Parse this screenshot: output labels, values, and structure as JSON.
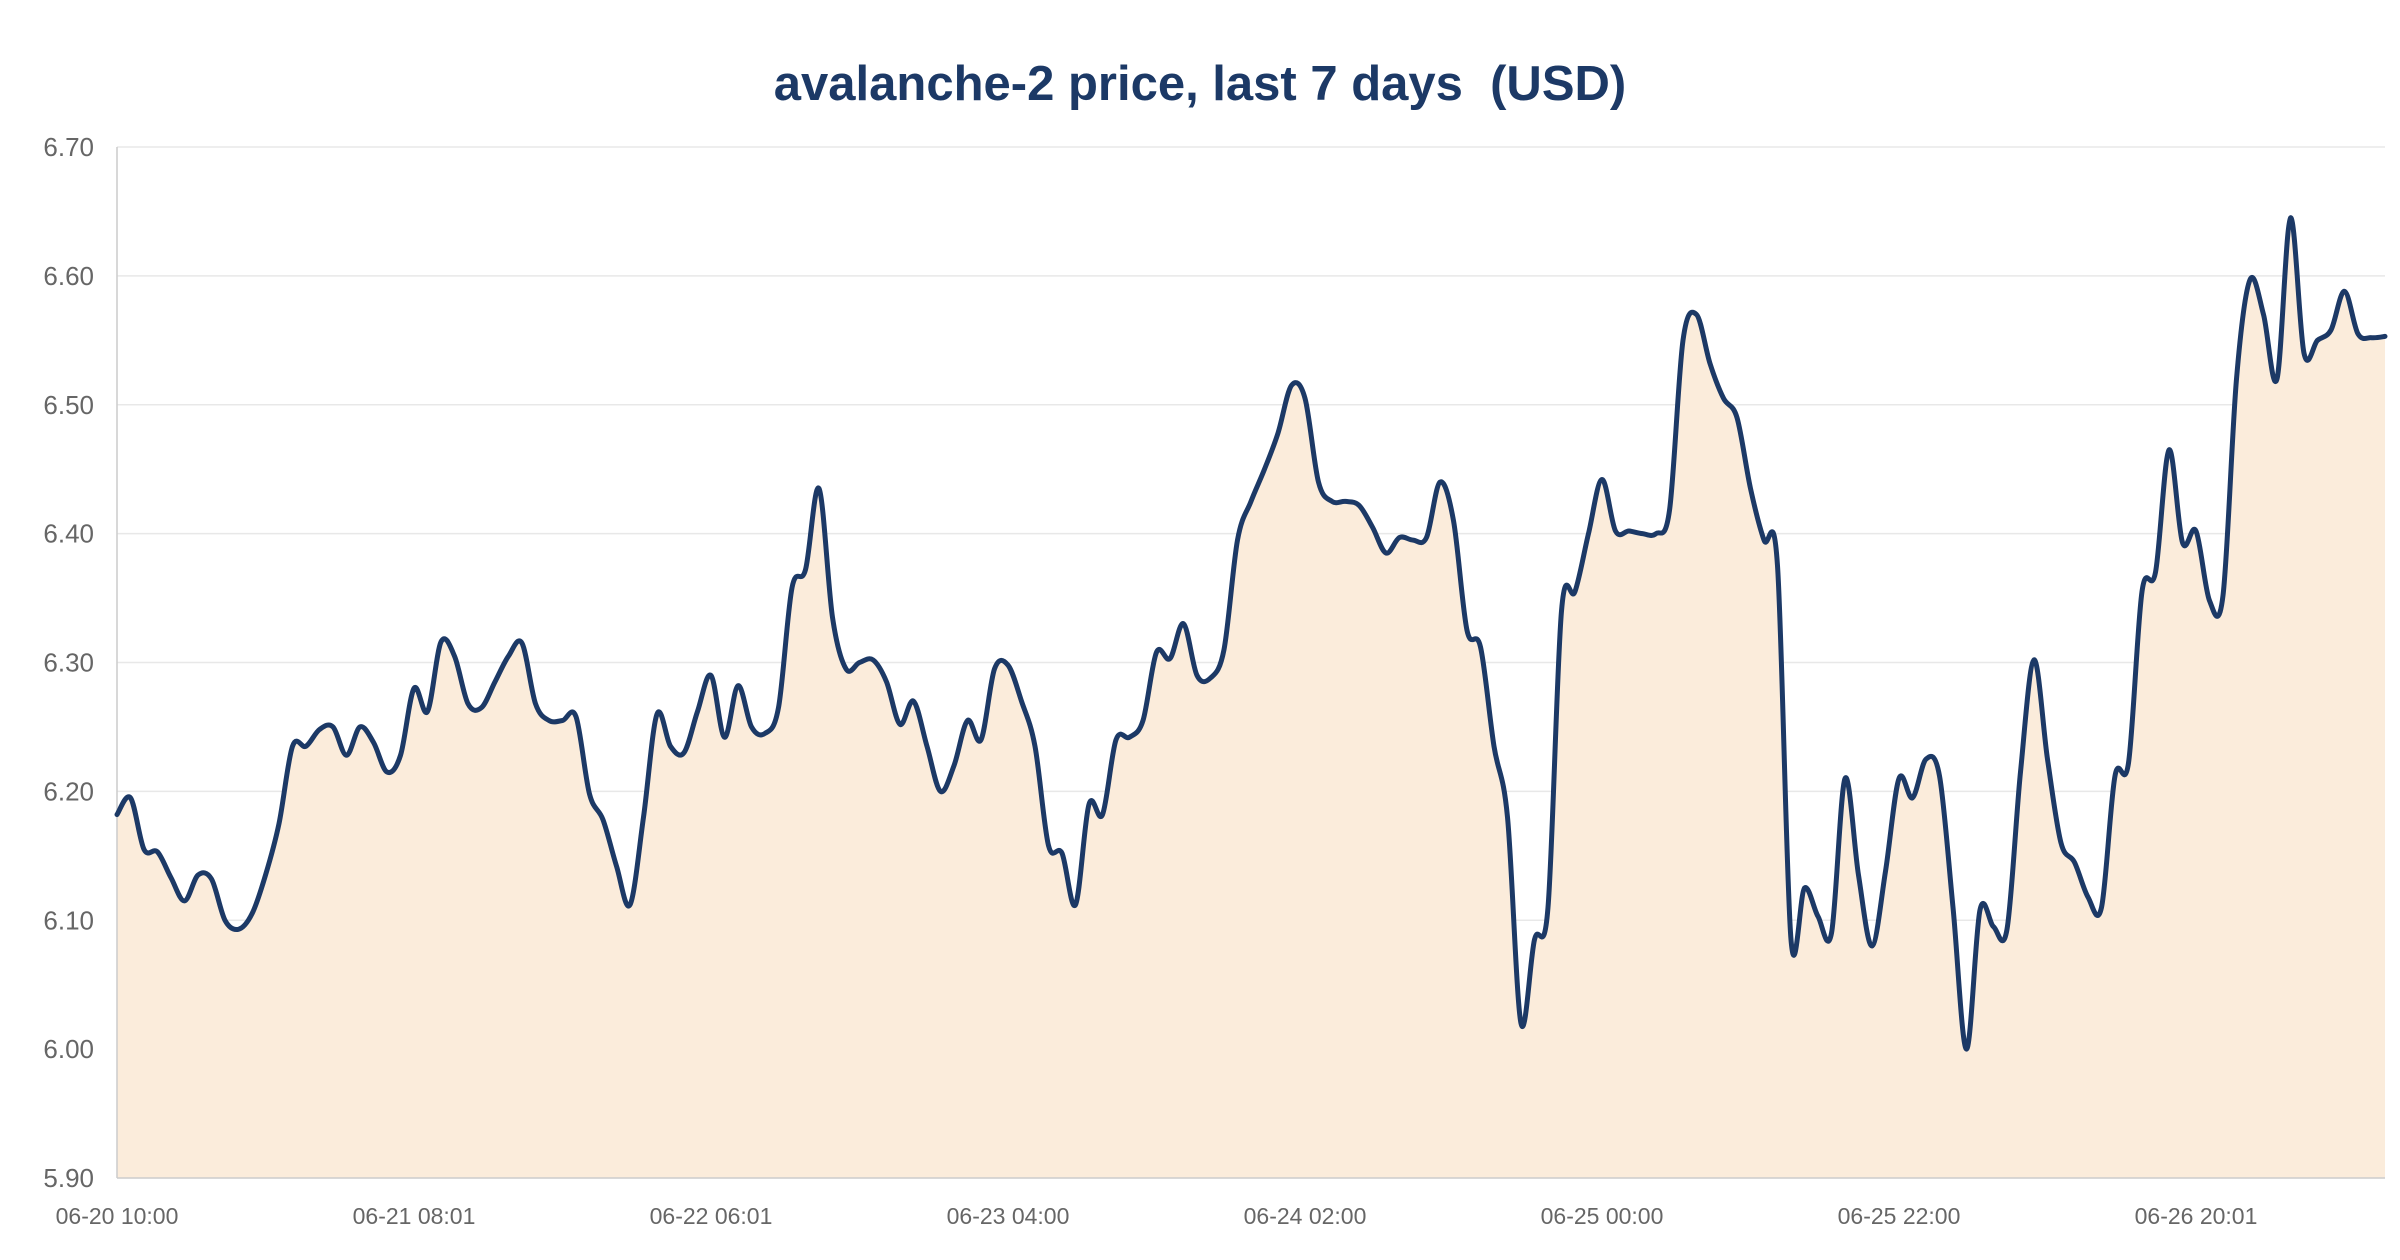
{
  "colors": {
    "line": "#1c3966",
    "fill": "#fbecdb",
    "grid": "#e8e8e8",
    "axis": "#cccccc",
    "tick_text": "#666666",
    "title": "#1c3966"
  },
  "chart_data": {
    "type": "area",
    "title": "avalanche-2 price, last 7 days  (USD)",
    "xlabel": "",
    "ylabel": "",
    "ylim": [
      5.9,
      6.7
    ],
    "yticks": [
      "6.70",
      "6.60",
      "6.50",
      "6.40",
      "6.30",
      "6.20",
      "6.10",
      "6.00",
      "5.90"
    ],
    "xticks": [
      "06-20 10:00",
      "06-21 08:01",
      "06-22 06:01",
      "06-23 04:00",
      "06-24 02:00",
      "06-25 00:00",
      "06-25 22:00",
      "06-26 20:01"
    ],
    "grid": true,
    "legend": "none",
    "series": [
      {
        "values": [
          6.182,
          6.195,
          6.155,
          6.153,
          6.133,
          6.115,
          6.135,
          6.132,
          6.1,
          6.093,
          6.105,
          6.135,
          6.175,
          6.235,
          6.235,
          6.248,
          6.25,
          6.228,
          6.25,
          6.238,
          6.215,
          6.228,
          6.28,
          6.262,
          6.316,
          6.305,
          6.268,
          6.265,
          6.285,
          6.305,
          6.315,
          6.268,
          6.255,
          6.255,
          6.258,
          6.198,
          6.178,
          6.142,
          6.112,
          6.18,
          6.26,
          6.235,
          6.23,
          6.262,
          6.29,
          6.242,
          6.282,
          6.25,
          6.245,
          6.265,
          6.358,
          6.372,
          6.435,
          6.335,
          6.295,
          6.3,
          6.302,
          6.285,
          6.252,
          6.27,
          6.235,
          6.2,
          6.22,
          6.255,
          6.24,
          6.295,
          6.298,
          6.27,
          6.235,
          6.158,
          6.152,
          6.112,
          6.19,
          6.182,
          6.24,
          6.242,
          6.255,
          6.308,
          6.303,
          6.33,
          6.29,
          6.288,
          6.31,
          6.395,
          6.425,
          6.45,
          6.478,
          6.515,
          6.505,
          6.44,
          6.425,
          6.425,
          6.422,
          6.405,
          6.385,
          6.397,
          6.395,
          6.397,
          6.44,
          6.41,
          6.325,
          6.312,
          6.235,
          6.18,
          6.02,
          6.085,
          6.11,
          6.34,
          6.355,
          6.4,
          6.442,
          6.402,
          6.402,
          6.4,
          6.4,
          6.418,
          6.55,
          6.57,
          6.532,
          6.505,
          6.49,
          6.435,
          6.395,
          6.375,
          6.085,
          6.125,
          6.103,
          6.09,
          6.21,
          6.135,
          6.08,
          6.138,
          6.21,
          6.195,
          6.225,
          6.212,
          6.11,
          6.0,
          6.108,
          6.095,
          6.093,
          6.215,
          6.302,
          6.225,
          6.16,
          6.145,
          6.118,
          6.11,
          6.212,
          6.222,
          6.355,
          6.37,
          6.465,
          6.393,
          6.402,
          6.348,
          6.352,
          6.52,
          6.597,
          6.57,
          6.52,
          6.645,
          6.54,
          6.55,
          6.558,
          6.588,
          6.555,
          6.552,
          6.553
        ]
      }
    ]
  }
}
